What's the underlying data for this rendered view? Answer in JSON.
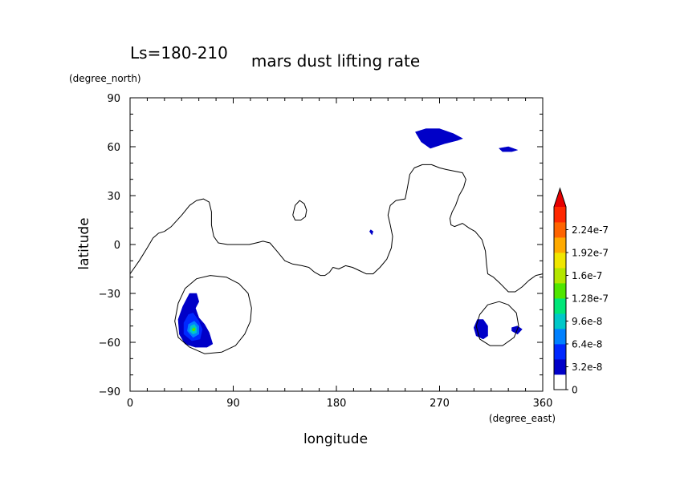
{
  "chart_data": {
    "type": "heatmap",
    "subtitle": "Ls=180-210",
    "title": "mars dust lifting rate",
    "xlabel": "longitude",
    "ylabel": "latitude",
    "x_units": "(degree_east)",
    "y_units": "(degree_north)",
    "xlim": [
      0,
      360
    ],
    "ylim": [
      -90,
      90
    ],
    "x_ticks": [
      0,
      90,
      180,
      270,
      360
    ],
    "y_ticks": [
      -90,
      -60,
      -30,
      0,
      30,
      60,
      90
    ],
    "x_tick_labels": [
      "0",
      "90",
      "180",
      "270",
      "360"
    ],
    "y_tick_labels": [
      "−90",
      "−60",
      "−30",
      "0",
      "30",
      "60",
      "90"
    ],
    "colorbar": {
      "min": 0,
      "max": 2.56e-07,
      "levels": [
        0,
        3.2e-08,
        6.4e-08,
        9.6e-08,
        1.28e-07,
        1.6e-07,
        1.92e-07,
        2.24e-07
      ],
      "labels": [
        "0",
        "3.2e-8",
        "6.4e-8",
        "9.6e-8",
        "1.28e-7",
        "1.6e-7",
        "1.92e-7",
        "2.24e-7"
      ],
      "extend": "max",
      "colors": [
        "#ffffff",
        "#0000c8",
        "#0028ff",
        "#0080ff",
        "#00c8c8",
        "#00e678",
        "#50e600",
        "#b4e600",
        "#f0e600",
        "#ffaa00",
        "#ff6400",
        "#ff2800",
        "#e60000"
      ]
    },
    "contour_line": {
      "color": "#000000",
      "paths": [
        [
          [
            0,
            -18
          ],
          [
            8,
            -10
          ],
          [
            15,
            -2
          ],
          [
            20,
            4
          ],
          [
            25,
            7
          ],
          [
            30,
            8
          ],
          [
            36,
            11
          ],
          [
            45,
            18
          ],
          [
            52,
            24
          ],
          [
            58,
            27
          ],
          [
            64,
            28
          ],
          [
            69,
            26
          ],
          [
            71,
            20
          ],
          [
            71,
            12
          ],
          [
            73,
            5
          ],
          [
            77,
            1
          ],
          [
            85,
            0
          ],
          [
            95,
            0
          ],
          [
            104,
            0
          ],
          [
            110,
            1
          ],
          [
            116,
            2
          ],
          [
            122,
            1
          ],
          [
            128,
            -4
          ],
          [
            135,
            -10
          ],
          [
            142,
            -12
          ],
          [
            150,
            -13
          ],
          [
            156,
            -14
          ],
          [
            161,
            -17
          ],
          [
            166,
            -19
          ],
          [
            170,
            -19
          ],
          [
            174,
            -17
          ],
          [
            177,
            -14
          ],
          [
            182,
            -15
          ],
          [
            188,
            -13
          ],
          [
            194,
            -14
          ],
          [
            200,
            -16
          ],
          [
            206,
            -18
          ],
          [
            212,
            -18
          ],
          [
            218,
            -14
          ],
          [
            224,
            -9
          ],
          [
            228,
            -2
          ],
          [
            229,
            5
          ],
          [
            227,
            12
          ],
          [
            225,
            18
          ],
          [
            227,
            24
          ],
          [
            232,
            27
          ],
          [
            240,
            28
          ],
          [
            242,
            35
          ],
          [
            244,
            43
          ],
          [
            248,
            47
          ],
          [
            255,
            49
          ],
          [
            263,
            49
          ],
          [
            270,
            47
          ],
          [
            276,
            46
          ],
          [
            283,
            45
          ],
          [
            290,
            44
          ],
          [
            293,
            40
          ],
          [
            291,
            35
          ],
          [
            287,
            30
          ],
          [
            284,
            24
          ],
          [
            281,
            20
          ],
          [
            279,
            16
          ],
          [
            280,
            12
          ],
          [
            283,
            11
          ],
          [
            290,
            13
          ],
          [
            296,
            10
          ],
          [
            301,
            8
          ],
          [
            307,
            3
          ],
          [
            310,
            -4
          ],
          [
            311,
            -12
          ],
          [
            312,
            -18
          ],
          [
            317,
            -20
          ],
          [
            323,
            -24
          ],
          [
            330,
            -29
          ],
          [
            336,
            -29
          ],
          [
            342,
            -26
          ],
          [
            348,
            -22
          ],
          [
            354,
            -19
          ],
          [
            360,
            -18
          ]
        ],
        [
          [
            142,
            18
          ],
          [
            144,
            24
          ],
          [
            148,
            27
          ],
          [
            152,
            25
          ],
          [
            154,
            21
          ],
          [
            153,
            17
          ],
          [
            149,
            15
          ],
          [
            144,
            15
          ],
          [
            142,
            18
          ]
        ],
        [
          [
            70,
            -19
          ],
          [
            58,
            -21
          ],
          [
            48,
            -27
          ],
          [
            42,
            -36
          ],
          [
            39,
            -47
          ],
          [
            42,
            -57
          ],
          [
            52,
            -63
          ],
          [
            65,
            -67
          ],
          [
            80,
            -66
          ],
          [
            92,
            -62
          ],
          [
            100,
            -55
          ],
          [
            105,
            -47
          ],
          [
            106,
            -39
          ],
          [
            103,
            -30
          ],
          [
            95,
            -24
          ],
          [
            84,
            -20
          ],
          [
            70,
            -19
          ]
        ],
        [
          [
            322,
            -35
          ],
          [
            312,
            -37
          ],
          [
            305,
            -43
          ],
          [
            302,
            -50
          ],
          [
            305,
            -58
          ],
          [
            314,
            -62
          ],
          [
            325,
            -62
          ],
          [
            335,
            -57
          ],
          [
            339,
            -50
          ],
          [
            337,
            -42
          ],
          [
            330,
            -37
          ],
          [
            322,
            -35
          ]
        ]
      ]
    },
    "regions": [
      {
        "level": 1,
        "points": [
          [
            249,
            69
          ],
          [
            258,
            71
          ],
          [
            270,
            71
          ],
          [
            282,
            68
          ],
          [
            290,
            65
          ],
          [
            286,
            64
          ],
          [
            275,
            62
          ],
          [
            262,
            59
          ],
          [
            254,
            63
          ],
          [
            249,
            69
          ]
        ]
      },
      {
        "level": 1,
        "points": [
          [
            322,
            59
          ],
          [
            330,
            60
          ],
          [
            338,
            58
          ],
          [
            333,
            57
          ],
          [
            325,
            57
          ],
          [
            322,
            59
          ]
        ]
      },
      {
        "level": 1,
        "points": [
          [
            210,
            9
          ],
          [
            212,
            8
          ],
          [
            211,
            6
          ],
          [
            209,
            8
          ],
          [
            210,
            9
          ]
        ]
      },
      {
        "level": 1,
        "points": [
          [
            52,
            -30
          ],
          [
            58,
            -30
          ],
          [
            60,
            -35
          ],
          [
            57,
            -39
          ],
          [
            60,
            -45
          ],
          [
            65,
            -49
          ],
          [
            69,
            -54
          ],
          [
            72,
            -61
          ],
          [
            67,
            -63
          ],
          [
            57,
            -63
          ],
          [
            48,
            -61
          ],
          [
            43,
            -55
          ],
          [
            42,
            -46
          ],
          [
            46,
            -38
          ],
          [
            52,
            -30
          ]
        ]
      },
      {
        "level": 2,
        "points": [
          [
            55,
            -42
          ],
          [
            60,
            -47
          ],
          [
            63,
            -52
          ],
          [
            61,
            -58
          ],
          [
            54,
            -59
          ],
          [
            47,
            -55
          ],
          [
            47,
            -48
          ],
          [
            51,
            -43
          ],
          [
            55,
            -42
          ]
        ]
      },
      {
        "level": 3,
        "points": [
          [
            56,
            -47
          ],
          [
            60,
            -50
          ],
          [
            60,
            -55
          ],
          [
            55,
            -57
          ],
          [
            50,
            -53
          ],
          [
            51,
            -49
          ],
          [
            56,
            -47
          ]
        ]
      },
      {
        "level": 4,
        "points": [
          [
            56,
            -49
          ],
          [
            58,
            -51
          ],
          [
            58,
            -54
          ],
          [
            55,
            -55
          ],
          [
            52,
            -53
          ],
          [
            53,
            -50
          ],
          [
            56,
            -49
          ]
        ]
      },
      {
        "level": 6,
        "points": [
          [
            56,
            -51
          ],
          [
            57,
            -52
          ],
          [
            56,
            -53
          ],
          [
            55,
            -53
          ],
          [
            54,
            -52
          ],
          [
            56,
            -51
          ]
        ]
      },
      {
        "level": 1,
        "points": [
          [
            303,
            -46
          ],
          [
            308,
            -46
          ],
          [
            312,
            -50
          ],
          [
            312,
            -56
          ],
          [
            308,
            -58
          ],
          [
            302,
            -56
          ],
          [
            300,
            -51
          ],
          [
            303,
            -46
          ]
        ]
      },
      {
        "level": 1,
        "points": [
          [
            333,
            -51
          ],
          [
            338,
            -50
          ],
          [
            342,
            -52
          ],
          [
            338,
            -55
          ],
          [
            333,
            -53
          ],
          [
            333,
            -51
          ]
        ]
      }
    ]
  }
}
